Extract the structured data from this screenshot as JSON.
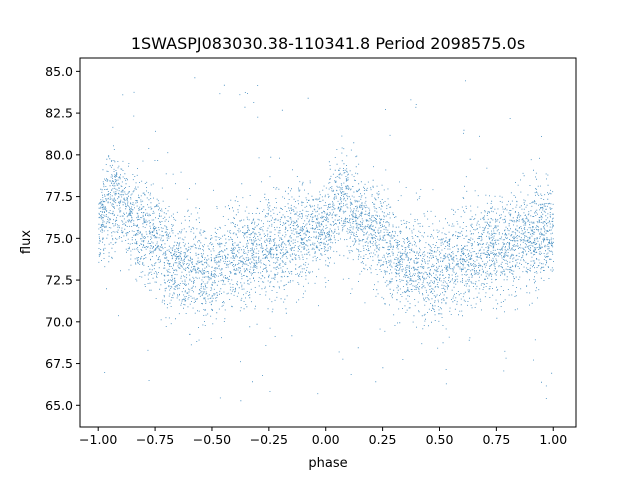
{
  "chart_data": {
    "type": "scatter",
    "title": "1SWASPJ083030.38-110341.8 Period 2098575.0s",
    "xlabel": "phase",
    "ylabel": "flux",
    "xlim": [
      -1.08,
      1.1
    ],
    "ylim": [
      63.7,
      85.8
    ],
    "x_ticks": [
      -1.0,
      -0.75,
      -0.5,
      -0.25,
      0.0,
      0.25,
      0.5,
      0.75,
      1.0
    ],
    "x_tick_labels": [
      "−1.00",
      "−0.75",
      "−0.50",
      "−0.25",
      "0.00",
      "0.25",
      "0.50",
      "0.75",
      "1.00"
    ],
    "y_ticks": [
      65.0,
      67.5,
      70.0,
      72.5,
      75.0,
      77.5,
      80.0,
      82.5,
      85.0
    ],
    "y_tick_labels": [
      "65.0",
      "67.5",
      "70.0",
      "72.5",
      "75.0",
      "77.5",
      "80.0",
      "82.5",
      "85.0"
    ],
    "grid": false,
    "legend": "none",
    "marker_color": "#1f77b4",
    "x": [
      -1.0,
      -0.95,
      -0.9,
      -0.85,
      -0.8,
      -0.75,
      -0.7,
      -0.65,
      -0.6,
      -0.55,
      -0.5,
      -0.45,
      -0.4,
      -0.35,
      -0.3,
      -0.25,
      -0.2,
      -0.15,
      -0.1,
      -0.05,
      0.0,
      0.05,
      0.1,
      0.15,
      0.2,
      0.25,
      0.3,
      0.35,
      0.4,
      0.45,
      0.5,
      0.55,
      0.6,
      0.65,
      0.7,
      0.75,
      0.8,
      0.85,
      0.9,
      0.95,
      1.0
    ],
    "y": [
      75.5,
      77.5,
      77.0,
      76.0,
      75.5,
      75.0,
      74.0,
      73.5,
      73.5,
      73.0,
      73.0,
      73.5,
      74.0,
      74.0,
      74.5,
      74.5,
      74.5,
      75.0,
      75.0,
      75.5,
      75.5,
      77.5,
      77.0,
      76.0,
      75.5,
      75.0,
      74.0,
      73.5,
      73.5,
      73.0,
      73.0,
      73.5,
      74.0,
      74.0,
      74.5,
      74.5,
      74.5,
      75.0,
      75.0,
      75.5,
      75.5
    ],
    "spread": [
      2.0,
      2.5,
      2.5,
      2.5,
      2.5,
      2.5,
      2.5,
      2.5,
      2.5,
      2.5,
      2.5,
      2.5,
      2.5,
      2.5,
      2.5,
      2.5,
      2.5,
      2.5,
      2.5,
      2.0,
      2.5,
      2.5,
      2.5,
      2.5,
      2.5,
      2.5,
      2.5,
      2.5,
      2.5,
      2.5,
      2.5,
      2.5,
      2.5,
      2.5,
      2.5,
      2.5,
      2.5,
      2.5,
      2.5,
      2.5,
      2.0
    ]
  }
}
